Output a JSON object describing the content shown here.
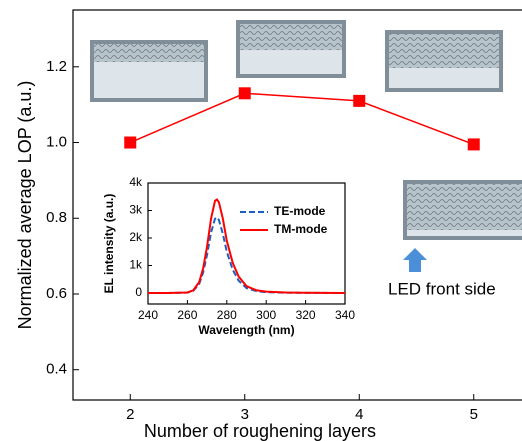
{
  "chart_data": [
    {
      "type": "line",
      "x_label": "Number of roughening layers",
      "y_label": "Normalized average LOP (a.u.)",
      "x": [
        2,
        3,
        4,
        5
      ],
      "series": [
        {
          "color": "#ff0000",
          "values": [
            1.0,
            1.13,
            1.11,
            0.995
          ]
        }
      ],
      "xlim": [
        1.5,
        5.5
      ],
      "xticks": [
        2,
        3,
        4,
        5
      ],
      "ylim": [
        0.32,
        1.35
      ],
      "yticks": [
        0.4,
        0.6,
        0.8,
        {
          "value": 1,
          "label": "1.0"
        },
        1.2
      ],
      "annotations": [
        "LED front side"
      ]
    },
    {
      "type": "line",
      "x_label": "Wavelength (nm)",
      "y_label": "EL intensity (a.u.)",
      "x": [
        240,
        250,
        260,
        263,
        266,
        268,
        270,
        272,
        274,
        275,
        276,
        278,
        280,
        283,
        286,
        290,
        295,
        300,
        310,
        320,
        340
      ],
      "series": [
        {
          "name": "TE-mode",
          "color": "#1f5fbf",
          "dash": true,
          "values": [
            0,
            0,
            15,
            80,
            330,
            750,
            1400,
            2200,
            2700,
            2750,
            2650,
            2150,
            1500,
            850,
            450,
            180,
            70,
            30,
            10,
            5,
            0
          ]
        },
        {
          "name": "TM-mode",
          "color": "#ff0000",
          "dash": false,
          "values": [
            0,
            0,
            20,
            100,
            400,
            900,
            1700,
            2700,
            3350,
            3400,
            3300,
            2700,
            1900,
            1100,
            600,
            250,
            100,
            50,
            20,
            10,
            0
          ]
        }
      ],
      "xlim": [
        240,
        340
      ],
      "xticks": [
        240,
        260,
        280,
        300,
        320,
        340
      ],
      "ylim": [
        -400,
        4000
      ],
      "yticks": [
        {
          "value": 0,
          "label": "0"
        },
        {
          "value": 1000,
          "label": "1k"
        },
        {
          "value": 2000,
          "label": "2k"
        },
        {
          "value": 3000,
          "label": "3k"
        },
        {
          "value": 4000,
          "label": "4k"
        }
      ]
    }
  ]
}
